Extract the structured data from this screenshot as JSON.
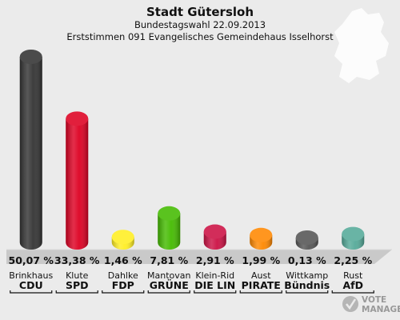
{
  "header": {
    "title": "Stadt Gütersloh",
    "subtitle": "Bundestagswahl 22.09.2013",
    "district": "Erststimmen 091 Evangelisches Gemeindehaus Isselhorst"
  },
  "logo": {
    "line1": "VOTE",
    "line2": "MANAGER"
  },
  "chart_data": {
    "type": "bar",
    "title": "Stadt Gütersloh",
    "subtitle": "Bundestagswahl 22.09.2013",
    "categories": [
      "CDU",
      "SPD",
      "FDP",
      "GRÜNE",
      "DIE LIN",
      "PIRATE",
      "Bündnis",
      "AfD"
    ],
    "candidates": [
      "Brinkhaus",
      "Klute",
      "Dahlke",
      "Mantovan",
      "Klein-Rid",
      "Aust",
      "Wittkamp",
      "Rust"
    ],
    "values": [
      50.07,
      33.38,
      1.46,
      7.81,
      2.91,
      1.99,
      0.13,
      2.25
    ],
    "value_labels": [
      "50,07 %",
      "33,38 %",
      "1,46 %",
      "7,81 %",
      "2,91 %",
      "1,99 %",
      "0,13 %",
      "2,25 %"
    ],
    "colors": [
      "#333333",
      "#dd0022",
      "#ffee22",
      "#44bb00",
      "#cc1144",
      "#ff8800",
      "#555555",
      "#55aa99"
    ],
    "ylim": [
      0,
      50.07
    ],
    "grid": false,
    "legend": "none"
  }
}
